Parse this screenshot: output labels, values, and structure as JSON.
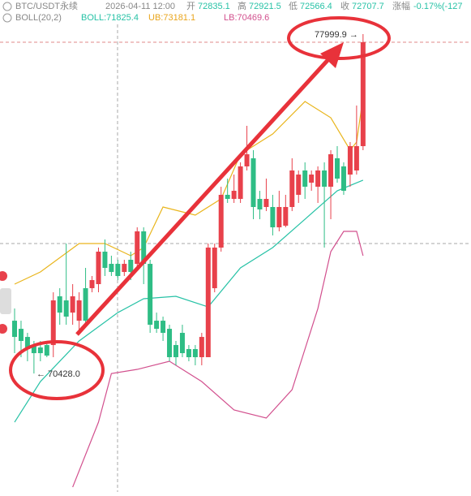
{
  "chart_data": {
    "type": "candlestick",
    "header": {
      "symbol": "BTC/USDT永续",
      "time": "2026-04-11 12:00",
      "open_label": "开",
      "open": "72835.1",
      "high_label": "高",
      "high": "72921.5",
      "low_label": "低",
      "low": "72566.4",
      "close_label": "收",
      "close": "72707.7",
      "change_label": "涨幅",
      "change": "-0.17%(-127"
    },
    "indicator": {
      "name": "BOLL(20,2)",
      "mid": "BOLL:71825.4",
      "ub": "UB:73181.1",
      "lb": "LB:70469.6"
    },
    "annotations": {
      "high_label": "77999.9 →",
      "low_label": "← 70428.0"
    },
    "ylim": [
      67786,
      78760
    ],
    "up_color": "#e8414b",
    "down_color": "#2ebd85",
    "open": [
      71606,
      71425,
      71244,
      71063,
      71009,
      71063,
      71063,
      72150,
      72059,
      71787,
      71606,
      72331,
      72331,
      72422,
      73146,
      72874,
      72874,
      72693,
      72965,
      72874,
      73599,
      72874,
      71606,
      71606,
      71425,
      71063,
      71335,
      70973,
      70973,
      70792,
      70792,
      72331,
      73237,
      74414,
      74323,
      74323,
      75048,
      75229,
      74323,
      74142,
      74142,
      73689,
      73725,
      74142,
      74414,
      74957,
      74685,
      74595,
      74957,
      74595,
      75229,
      75048,
      74866,
      74957,
      75500
    ],
    "high": [
      71878,
      71606,
      71335,
      71154,
      71154,
      71154,
      72240,
      72331,
      73327,
      72422,
      72240,
      72784,
      72603,
      73237,
      73418,
      73056,
      72965,
      72965,
      73146,
      73689,
      73689,
      72965,
      71787,
      71697,
      71516,
      71154,
      71516,
      71063,
      71063,
      71335,
      73327,
      73327,
      74595,
      74776,
      74866,
      75138,
      75953,
      75410,
      74504,
      74776,
      74414,
      74504,
      74414,
      75229,
      74957,
      75138,
      74957,
      75048,
      75138,
      75410,
      75500,
      75138,
      75591,
      76406,
      77999.9
    ],
    "low": [
      70882,
      70792,
      70701,
      70428.0,
      70701,
      70792,
      70792,
      71516,
      71516,
      71516,
      71335,
      71516,
      72240,
      72240,
      72603,
      72603,
      72512,
      72603,
      72512,
      72784,
      72422,
      71335,
      71335,
      71154,
      70701,
      70611,
      70792,
      70701,
      70611,
      70611,
      70792,
      72240,
      73146,
      74233,
      74233,
      74233,
      74957,
      73870,
      73870,
      74051,
      73508,
      73599,
      73689,
      74051,
      74233,
      74323,
      74504,
      74233,
      73237,
      73870,
      74685,
      74414,
      74595,
      74866,
      75410
    ],
    "close": [
      71244,
      71154,
      70973,
      70882,
      70882,
      70828,
      72059,
      71787,
      71697,
      72150,
      72059,
      71606,
      72512,
      73146,
      72784,
      72693,
      72603,
      72874,
      72693,
      73599,
      72874,
      71516,
      71425,
      71335,
      70792,
      70792,
      70882,
      70792,
      70792,
      71244,
      73237,
      73237,
      74414,
      74323,
      74504,
      75048,
      75319,
      74142,
      74088,
      74323,
      73689,
      74142,
      74142,
      74957,
      74866,
      74595,
      74866,
      74957,
      74595,
      75319,
      74776,
      74504,
      75500,
      75500,
      77818
    ],
    "bands": [
      {
        "name": "BOLL",
        "color": "#27c2a6",
        "x": [
          0,
          4,
          10,
          16,
          20,
          25,
          30,
          35,
          40,
          45,
          50,
          54
        ],
        "values": [
          69343,
          70248,
          71154,
          71787,
          72096,
          72150,
          71914,
          72784,
          73237,
          73870,
          74504,
          74740
        ]
      },
      {
        "name": "UB",
        "color": "#e9b51c",
        "x": [
          0,
          4,
          10,
          14,
          18,
          20,
          23,
          28,
          32,
          35,
          40,
          45,
          49,
          52,
          53,
          54
        ],
        "values": [
          72422,
          72693,
          73327,
          73327,
          73056,
          73237,
          74142,
          73961,
          74323,
          75319,
          75772,
          76496,
          76134,
          75410,
          75591,
          76587
        ]
      },
      {
        "name": "LB",
        "color": "#d2508e",
        "x": [
          9,
          13,
          15,
          19,
          24,
          29,
          34,
          39,
          43,
          47,
          49,
          51,
          53,
          54
        ],
        "values": [
          67894,
          69343,
          70428,
          70520,
          70701,
          70248,
          69615,
          69434,
          70067,
          71878,
          73146,
          73599,
          73599,
          73056
        ]
      }
    ]
  }
}
